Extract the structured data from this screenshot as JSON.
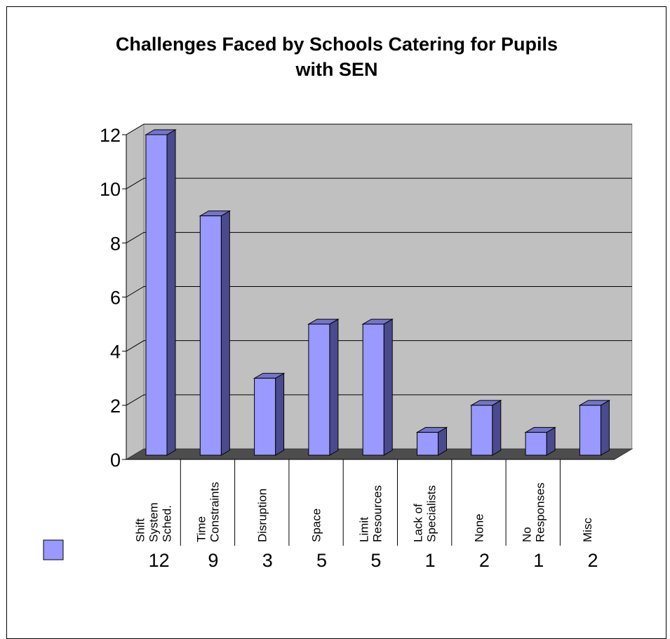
{
  "chart_data": {
    "type": "bar",
    "title": "Challenges Faced by Schools Catering for Pupils\nwith SEN",
    "xlabel": "",
    "ylabel": "",
    "ylim": [
      0,
      12
    ],
    "yticks": [
      0,
      2,
      4,
      6,
      8,
      10,
      12
    ],
    "grid": true,
    "legend": "bottom-left",
    "style": "3d-column",
    "categories": [
      [
        "Shift",
        "System",
        "Sched."
      ],
      [
        "Time",
        "Constraints"
      ],
      [
        "Disruption"
      ],
      [
        "Space"
      ],
      [
        "Limit",
        "Resources"
      ],
      [
        "Lack of",
        "Specialists"
      ],
      [
        "None"
      ],
      [
        "No",
        "Responses"
      ],
      [
        "Misc"
      ]
    ],
    "series": [
      {
        "values": [
          12,
          9,
          3,
          5,
          5,
          1,
          2,
          1,
          2
        ]
      }
    ],
    "colors": {
      "bar_front": "#9999ff",
      "bar_side": "#4a4a8e",
      "bar_top": "#7575c8",
      "wall": "#c0c0c0",
      "floor": "#4d4d4d",
      "grid": "#000000"
    }
  }
}
